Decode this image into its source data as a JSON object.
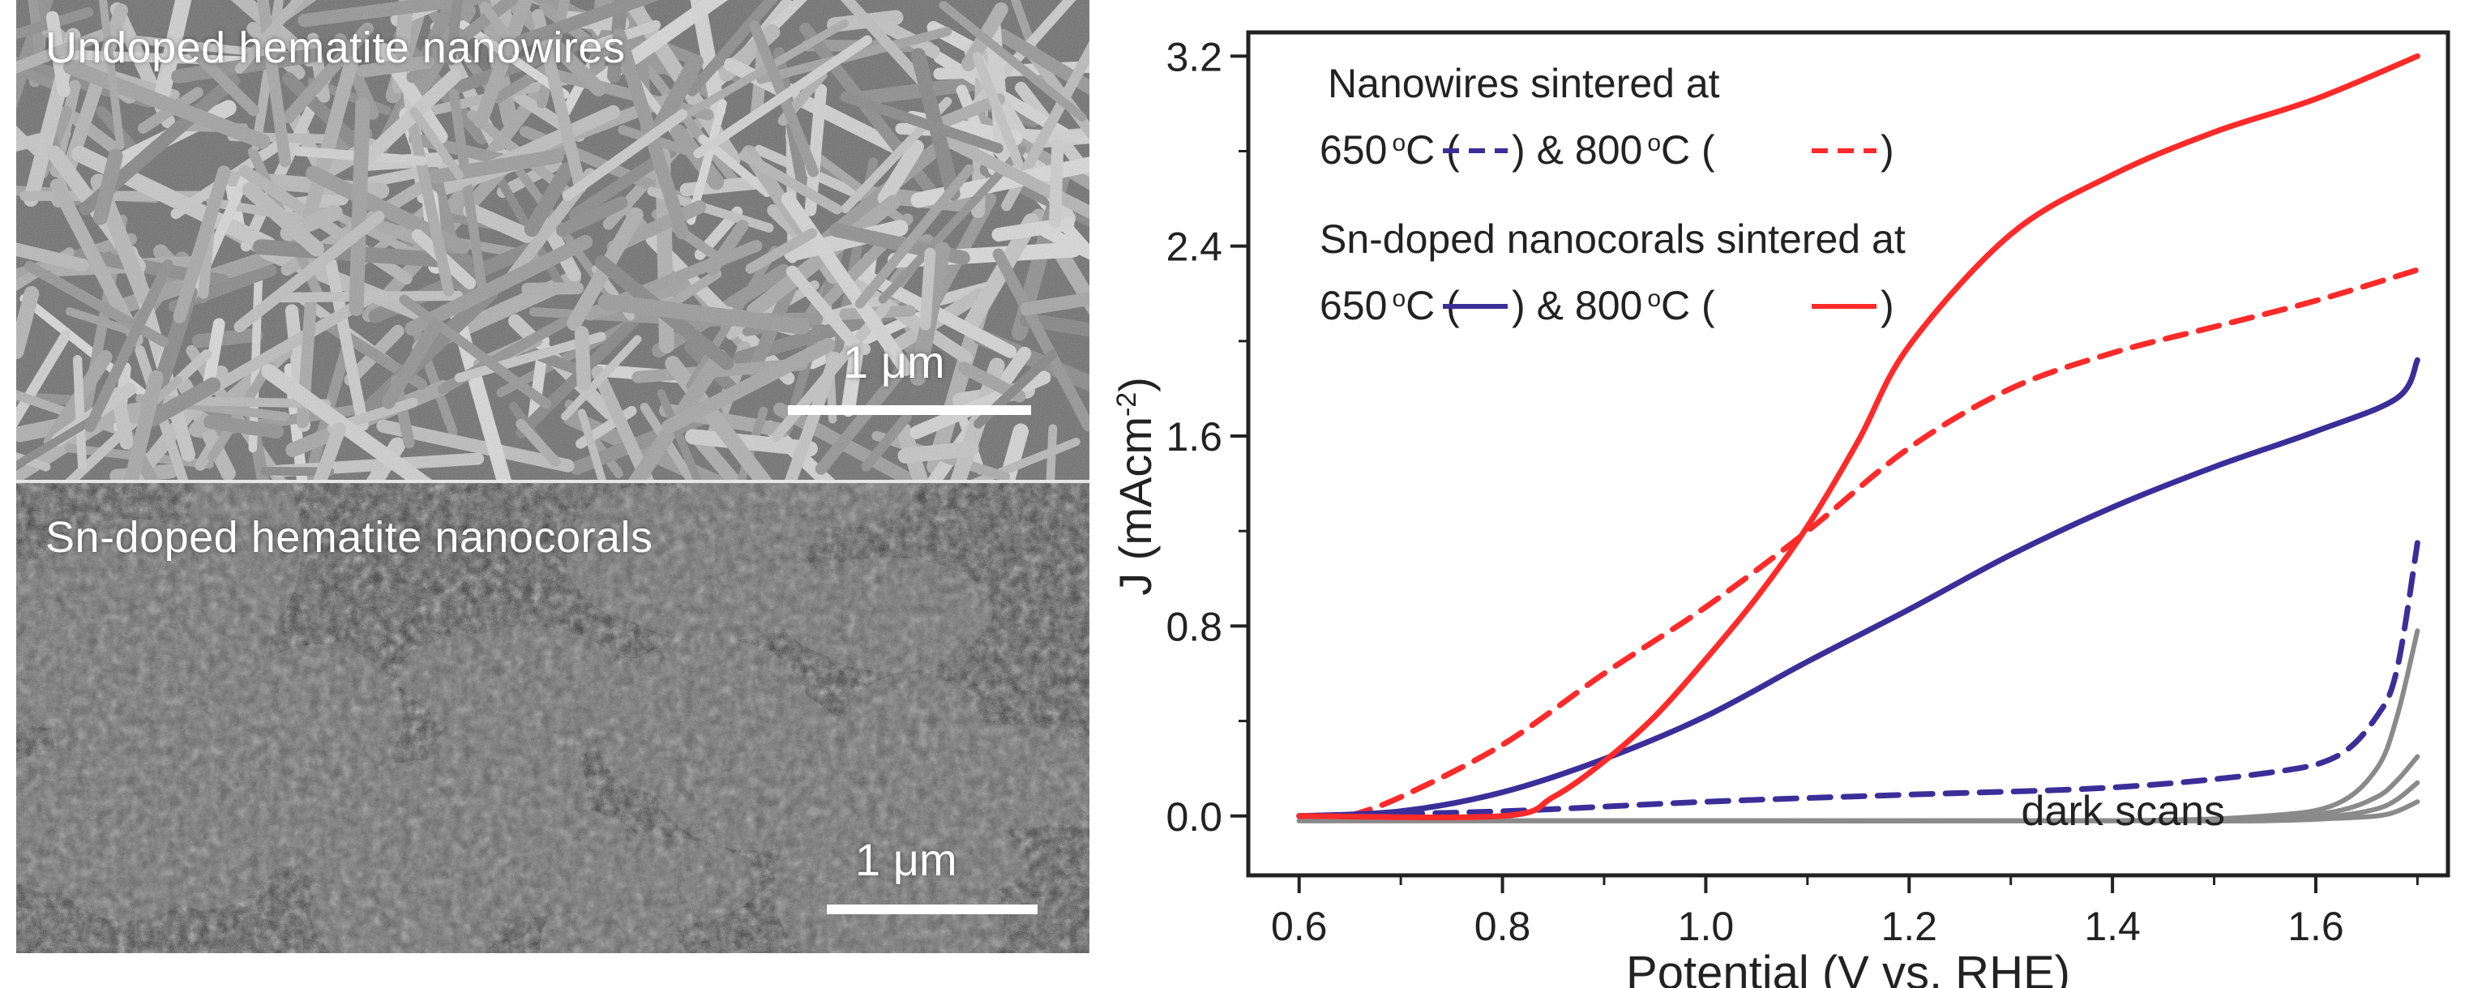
{
  "sem_panels": {
    "top": {
      "label": "Undoped hematite nanowires",
      "scale": "1 μm"
    },
    "bottom": {
      "label": "Sn-doped hematite nanocorals",
      "scale": "1 μm"
    }
  },
  "chart_data": {
    "type": "line",
    "title": "",
    "xlabel": "Potential (V vs. RHE)",
    "ylabel": "J (mAcm",
    "ylabel_sup": "-2",
    "ylabel_end": ")",
    "xlim": [
      0.55,
      1.73
    ],
    "ylim": [
      -0.25,
      3.3
    ],
    "xticks": [
      0.6,
      0.8,
      1.0,
      1.2,
      1.4,
      1.6
    ],
    "xtick_labels": [
      "0.6",
      "0.8",
      "1.0",
      "1.2",
      "1.4",
      "1.6"
    ],
    "yticks": [
      0.0,
      0.8,
      1.6,
      2.4,
      3.2
    ],
    "ytick_labels": [
      "0.0",
      "0.8",
      "1.6",
      "2.4",
      "3.2"
    ],
    "grid": false,
    "legend": {
      "nanowires_heading": "Nanowires sintered at",
      "nanocorals_heading": "Sn-doped nanocorals sintered at",
      "t650": "650",
      "t800": "800",
      "deg": "o",
      "unit": "C (",
      "close": ")",
      "amp": "& "
    },
    "annotation": "dark scans",
    "colors": {
      "red": "#ff2a2a",
      "purple": "#3b2e99",
      "gray": "#8a8a8a"
    },
    "series": [
      {
        "key": "nw650",
        "color": "#3b2e99",
        "dash": true,
        "x": [
          0.6,
          0.8,
          1.0,
          1.2,
          1.4,
          1.55,
          1.62,
          1.66,
          1.68,
          1.7
        ],
        "y": [
          0.0,
          0.02,
          0.06,
          0.09,
          0.12,
          0.18,
          0.25,
          0.42,
          0.62,
          1.15
        ]
      },
      {
        "key": "nw800",
        "color": "#ff2a2a",
        "dash": true,
        "x": [
          0.65,
          0.7,
          0.8,
          0.9,
          1.0,
          1.1,
          1.2,
          1.3,
          1.4,
          1.5,
          1.6,
          1.7
        ],
        "y": [
          0.0,
          0.08,
          0.3,
          0.6,
          0.88,
          1.2,
          1.55,
          1.8,
          1.95,
          2.06,
          2.17,
          2.3
        ]
      },
      {
        "key": "nc650",
        "color": "#3b2e99",
        "dash": false,
        "x": [
          0.6,
          0.7,
          0.8,
          0.9,
          1.0,
          1.1,
          1.2,
          1.3,
          1.4,
          1.5,
          1.6,
          1.68,
          1.7
        ],
        "y": [
          0.0,
          0.02,
          0.1,
          0.24,
          0.42,
          0.65,
          0.87,
          1.1,
          1.3,
          1.47,
          1.62,
          1.76,
          1.92
        ]
      },
      {
        "key": "nc800",
        "color": "#ff2a2a",
        "dash": false,
        "x": [
          0.6,
          0.8,
          0.85,
          0.9,
          0.95,
          1.0,
          1.05,
          1.1,
          1.15,
          1.2,
          1.3,
          1.4,
          1.5,
          1.6,
          1.7
        ],
        "y": [
          0.0,
          0.0,
          0.08,
          0.23,
          0.42,
          0.66,
          0.92,
          1.22,
          1.58,
          1.98,
          2.45,
          2.7,
          2.88,
          3.02,
          3.2
        ]
      },
      {
        "key": "dark1",
        "color": "#8a8a8a",
        "dash": false,
        "x": [
          0.6,
          1.0,
          1.4,
          1.55,
          1.62,
          1.66,
          1.68,
          1.7
        ],
        "y": [
          -0.02,
          -0.02,
          -0.02,
          0.0,
          0.05,
          0.2,
          0.42,
          0.78
        ]
      },
      {
        "key": "dark2",
        "color": "#8a8a8a",
        "dash": false,
        "x": [
          0.6,
          1.0,
          1.4,
          1.55,
          1.62,
          1.66,
          1.68,
          1.7
        ],
        "y": [
          -0.02,
          -0.02,
          -0.02,
          -0.01,
          0.02,
          0.08,
          0.15,
          0.25
        ]
      },
      {
        "key": "dark3",
        "color": "#8a8a8a",
        "dash": false,
        "x": [
          0.6,
          1.0,
          1.4,
          1.55,
          1.62,
          1.66,
          1.68,
          1.7
        ],
        "y": [
          -0.02,
          -0.02,
          -0.02,
          -0.02,
          0.0,
          0.03,
          0.07,
          0.14
        ]
      },
      {
        "key": "dark4",
        "color": "#8a8a8a",
        "dash": false,
        "x": [
          0.6,
          1.0,
          1.4,
          1.55,
          1.62,
          1.66,
          1.68,
          1.7
        ],
        "y": [
          -0.02,
          -0.02,
          -0.02,
          -0.02,
          -0.01,
          0.0,
          0.02,
          0.06
        ]
      }
    ]
  }
}
